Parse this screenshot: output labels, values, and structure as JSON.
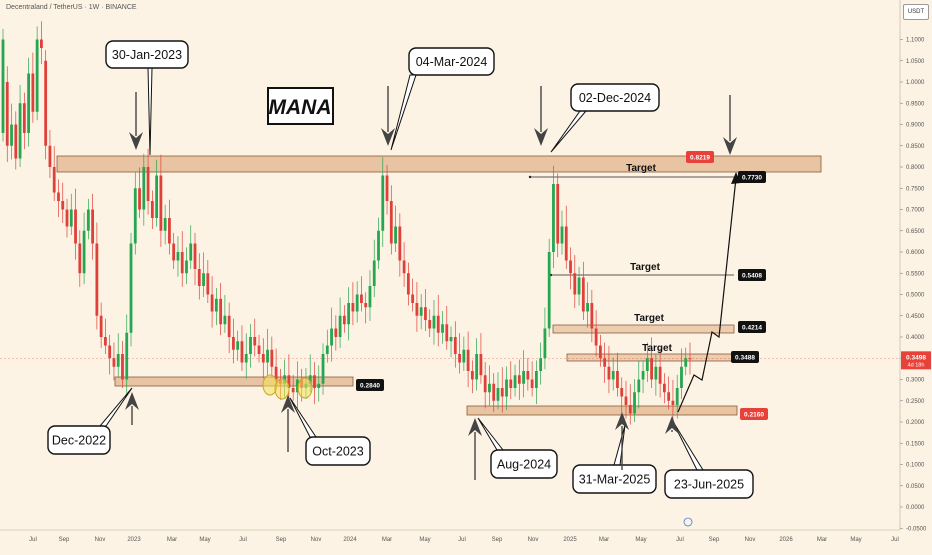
{
  "header": {
    "title": "Decentraland / TetherUS · 1W · BINANCE",
    "currency": "USDT"
  },
  "chart_data": {
    "type": "candlestick",
    "title": "MANA",
    "x_range": [
      "2022-06",
      "2026-07"
    ],
    "y_range": [
      -0.05,
      1.15
    ],
    "x_tick_labels": [
      "Jul",
      "Sep",
      "Nov",
      "2023",
      "Mar",
      "May",
      "Jul",
      "Sep",
      "Nov",
      "2024",
      "Mar",
      "May",
      "Jul",
      "Sep",
      "Nov",
      "2025",
      "Mar",
      "May",
      "Jul",
      "Sep",
      "Nov",
      "2026",
      "Mar",
      "May",
      "Jul"
    ],
    "y_tick_labels": [
      "1.1000",
      "1.0500",
      "1.0000",
      "0.9500",
      "0.9000",
      "0.8500",
      "0.8000",
      "0.7500",
      "0.7000",
      "0.6500",
      "0.6000",
      "0.5500",
      "0.5000",
      "0.4500",
      "0.4000",
      "0.3500",
      "0.3000",
      "0.2500",
      "0.2000",
      "0.1500",
      "0.1000",
      "0.0500",
      "0.0000",
      "-0.0500"
    ],
    "y_tick_values": [
      1.1,
      1.05,
      1.0,
      0.95,
      0.9,
      0.85,
      0.8,
      0.75,
      0.7,
      0.65,
      0.6,
      0.55,
      0.5,
      0.45,
      0.4,
      0.35,
      0.3,
      0.25,
      0.2,
      0.15,
      0.1,
      0.05,
      0.0,
      -0.05
    ],
    "current_price": {
      "label": "0.3498",
      "sub": "4d 18h",
      "value": 0.3498,
      "color": "#e8413a"
    },
    "colors": {
      "up": "#26a650",
      "down": "#e0403a",
      "zone_fill": "#e2b48c",
      "zone_stroke": "#8a5a3a"
    },
    "price_tags": [
      {
        "label": "0.8219",
        "value": 0.8219,
        "style": "red"
      },
      {
        "label": "0.7730",
        "value": 0.773,
        "style": "black"
      },
      {
        "label": "0.5408",
        "value": 0.5408,
        "style": "black"
      },
      {
        "label": "0.4214",
        "value": 0.4214,
        "style": "black"
      },
      {
        "label": "0.3488",
        "value": 0.3488,
        "style": "black"
      },
      {
        "label": "0.2840",
        "value": 0.284,
        "style": "black"
      },
      {
        "label": "0.2160",
        "value": 0.216,
        "style": "red"
      }
    ],
    "target_labels": [
      "Target",
      "Target",
      "Target",
      "Target"
    ],
    "annotations": [
      "30-Jan-2023",
      "04-Mar-2024",
      "02-Dec-2024",
      "Dec-2022",
      "Oct-2023",
      "Aug-2024",
      "31-Mar-2025",
      "23-Jun-2025"
    ],
    "candles": [
      [
        0.88,
        1.1
      ],
      [
        1.0,
        0.85
      ],
      [
        0.85,
        0.9
      ],
      [
        0.9,
        0.82
      ],
      [
        0.82,
        0.95
      ],
      [
        0.95,
        0.88
      ],
      [
        0.88,
        1.02
      ],
      [
        1.02,
        0.93
      ],
      [
        0.93,
        1.1
      ],
      [
        1.1,
        1.08
      ],
      [
        1.05,
        0.85
      ],
      [
        0.85,
        0.8
      ],
      [
        0.8,
        0.74
      ],
      [
        0.74,
        0.72
      ],
      [
        0.72,
        0.7
      ],
      [
        0.7,
        0.66
      ],
      [
        0.66,
        0.7
      ],
      [
        0.7,
        0.62
      ],
      [
        0.62,
        0.55
      ],
      [
        0.55,
        0.65
      ],
      [
        0.65,
        0.7
      ],
      [
        0.7,
        0.62
      ],
      [
        0.62,
        0.45
      ],
      [
        0.45,
        0.4
      ],
      [
        0.4,
        0.38
      ],
      [
        0.38,
        0.35
      ],
      [
        0.35,
        0.33
      ],
      [
        0.33,
        0.36
      ],
      [
        0.36,
        0.3
      ],
      [
        0.3,
        0.41
      ],
      [
        0.41,
        0.62
      ],
      [
        0.62,
        0.75
      ],
      [
        0.75,
        0.7
      ],
      [
        0.7,
        0.8
      ],
      [
        0.8,
        0.72
      ],
      [
        0.72,
        0.68
      ],
      [
        0.68,
        0.78
      ],
      [
        0.78,
        0.65
      ],
      [
        0.65,
        0.68
      ],
      [
        0.68,
        0.62
      ],
      [
        0.62,
        0.58
      ],
      [
        0.58,
        0.6
      ],
      [
        0.6,
        0.55
      ],
      [
        0.55,
        0.58
      ],
      [
        0.58,
        0.62
      ],
      [
        0.62,
        0.56
      ],
      [
        0.56,
        0.52
      ],
      [
        0.52,
        0.55
      ],
      [
        0.55,
        0.5
      ],
      [
        0.5,
        0.46
      ],
      [
        0.46,
        0.49
      ],
      [
        0.49,
        0.43
      ],
      [
        0.43,
        0.45
      ],
      [
        0.45,
        0.4
      ],
      [
        0.4,
        0.37
      ],
      [
        0.37,
        0.39
      ],
      [
        0.39,
        0.34
      ],
      [
        0.34,
        0.36
      ],
      [
        0.36,
        0.4
      ],
      [
        0.4,
        0.38
      ],
      [
        0.38,
        0.36
      ],
      [
        0.36,
        0.34
      ],
      [
        0.34,
        0.37
      ],
      [
        0.37,
        0.33
      ],
      [
        0.33,
        0.3
      ],
      [
        0.3,
        0.29
      ],
      [
        0.29,
        0.31
      ],
      [
        0.31,
        0.28
      ],
      [
        0.28,
        0.27
      ],
      [
        0.27,
        0.3
      ],
      [
        0.3,
        0.28
      ],
      [
        0.28,
        0.29
      ],
      [
        0.29,
        0.31
      ],
      [
        0.31,
        0.28
      ],
      [
        0.28,
        0.29
      ],
      [
        0.29,
        0.36
      ],
      [
        0.36,
        0.38
      ],
      [
        0.38,
        0.42
      ],
      [
        0.42,
        0.4
      ],
      [
        0.4,
        0.45
      ],
      [
        0.45,
        0.43
      ],
      [
        0.43,
        0.48
      ],
      [
        0.48,
        0.46
      ],
      [
        0.46,
        0.5
      ],
      [
        0.5,
        0.48
      ],
      [
        0.48,
        0.47
      ],
      [
        0.47,
        0.52
      ],
      [
        0.52,
        0.58
      ],
      [
        0.58,
        0.65
      ],
      [
        0.65,
        0.78
      ],
      [
        0.78,
        0.72
      ],
      [
        0.72,
        0.62
      ],
      [
        0.62,
        0.66
      ],
      [
        0.66,
        0.58
      ],
      [
        0.58,
        0.55
      ],
      [
        0.55,
        0.5
      ],
      [
        0.5,
        0.48
      ],
      [
        0.48,
        0.45
      ],
      [
        0.45,
        0.47
      ],
      [
        0.47,
        0.44
      ],
      [
        0.44,
        0.42
      ],
      [
        0.42,
        0.45
      ],
      [
        0.45,
        0.41
      ],
      [
        0.41,
        0.43
      ],
      [
        0.43,
        0.39
      ],
      [
        0.39,
        0.4
      ],
      [
        0.4,
        0.36
      ],
      [
        0.36,
        0.34
      ],
      [
        0.34,
        0.37
      ],
      [
        0.37,
        0.32
      ],
      [
        0.32,
        0.3
      ],
      [
        0.3,
        0.36
      ],
      [
        0.36,
        0.31
      ],
      [
        0.31,
        0.27
      ],
      [
        0.27,
        0.29
      ],
      [
        0.29,
        0.25
      ],
      [
        0.25,
        0.28
      ],
      [
        0.28,
        0.26
      ],
      [
        0.26,
        0.3
      ],
      [
        0.3,
        0.28
      ],
      [
        0.28,
        0.31
      ],
      [
        0.31,
        0.29
      ],
      [
        0.29,
        0.32
      ],
      [
        0.32,
        0.3
      ],
      [
        0.3,
        0.28
      ],
      [
        0.28,
        0.32
      ],
      [
        0.32,
        0.35
      ],
      [
        0.35,
        0.42
      ],
      [
        0.42,
        0.6
      ],
      [
        0.6,
        0.76
      ],
      [
        0.76,
        0.62
      ],
      [
        0.62,
        0.66
      ],
      [
        0.66,
        0.58
      ],
      [
        0.58,
        0.55
      ],
      [
        0.55,
        0.5
      ],
      [
        0.5,
        0.54
      ],
      [
        0.54,
        0.46
      ],
      [
        0.46,
        0.48
      ],
      [
        0.48,
        0.42
      ],
      [
        0.42,
        0.38
      ],
      [
        0.38,
        0.35
      ],
      [
        0.35,
        0.33
      ],
      [
        0.33,
        0.3
      ],
      [
        0.3,
        0.32
      ],
      [
        0.32,
        0.28
      ],
      [
        0.28,
        0.26
      ],
      [
        0.26,
        0.24
      ],
      [
        0.24,
        0.22
      ],
      [
        0.22,
        0.27
      ],
      [
        0.27,
        0.3
      ],
      [
        0.3,
        0.32
      ],
      [
        0.32,
        0.35
      ],
      [
        0.35,
        0.3
      ],
      [
        0.3,
        0.33
      ],
      [
        0.33,
        0.29
      ],
      [
        0.29,
        0.27
      ],
      [
        0.27,
        0.25
      ],
      [
        0.25,
        0.24
      ],
      [
        0.24,
        0.28
      ],
      [
        0.28,
        0.33
      ],
      [
        0.33,
        0.35
      ],
      [
        0.35,
        0.3498
      ]
    ]
  }
}
